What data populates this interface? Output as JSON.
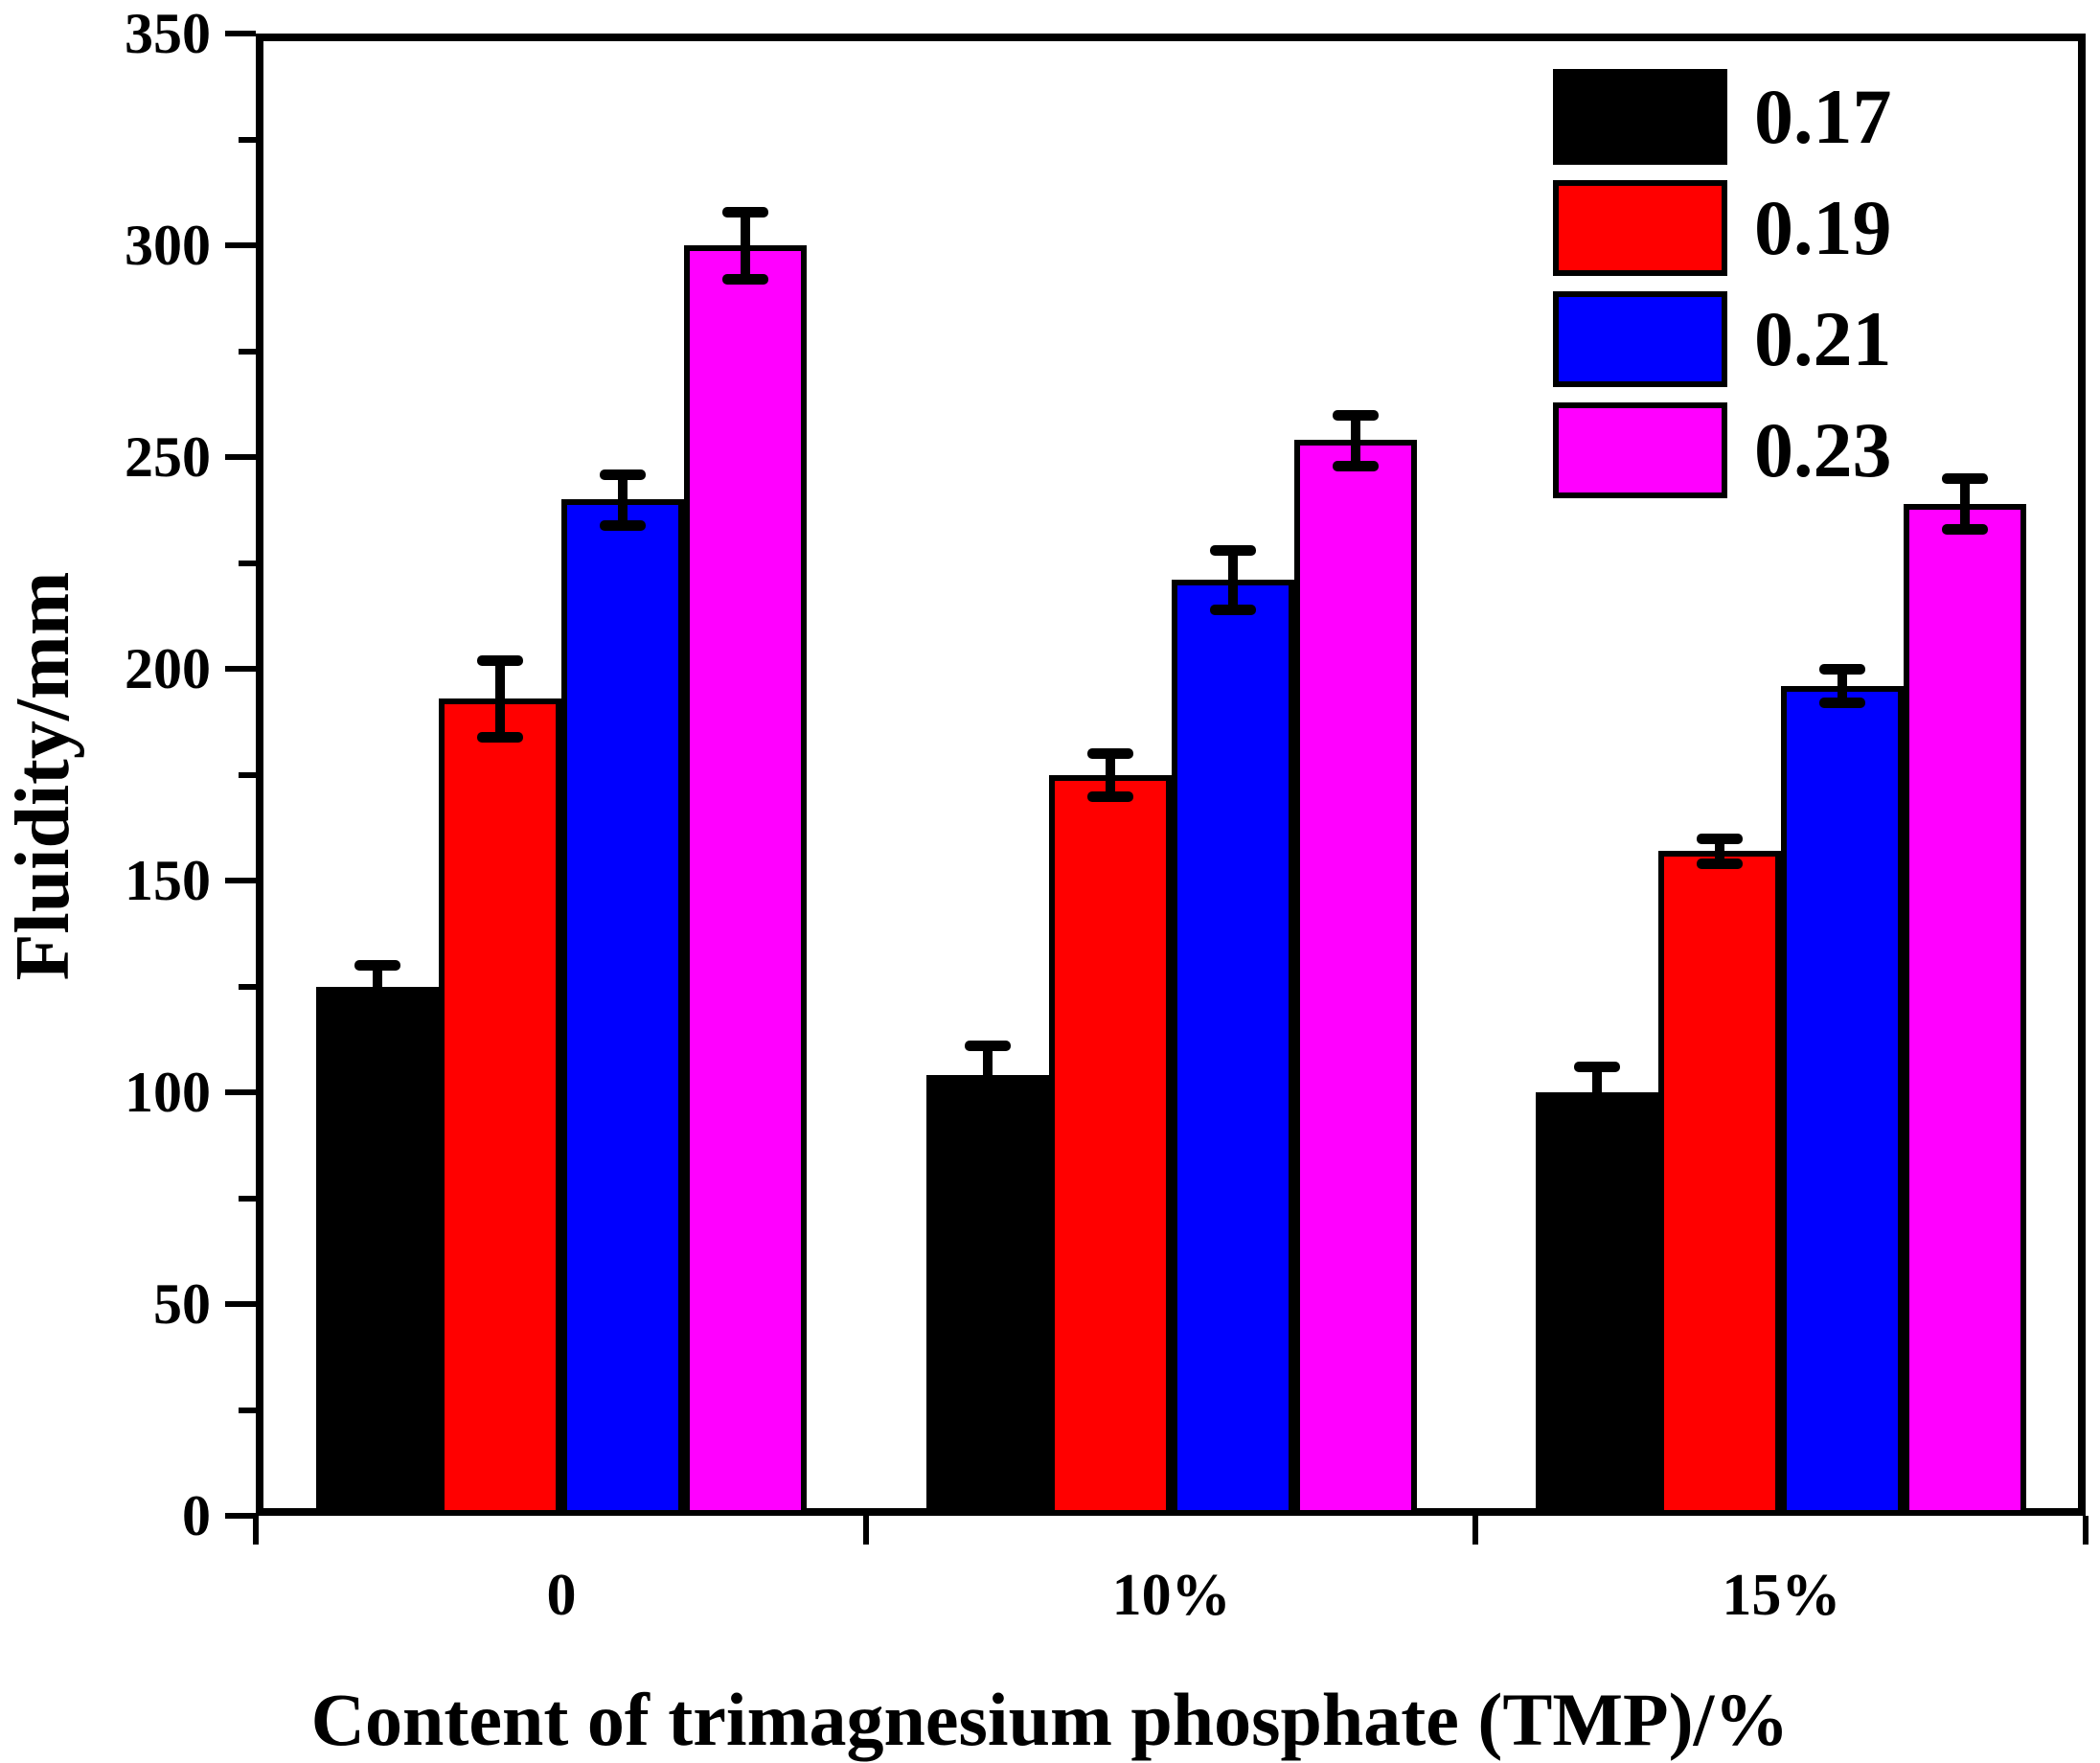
{
  "chart_data": {
    "type": "bar",
    "title": "",
    "xlabel": "Content of trimagnesium phosphate (TMP)/%",
    "ylabel": "Fluidity/mm",
    "categories": [
      "0",
      "10%",
      "15%"
    ],
    "series": [
      {
        "name": "0.17",
        "color": "#000000",
        "values": [
          125,
          104,
          100
        ],
        "errors": [
          5,
          7,
          6
        ]
      },
      {
        "name": "0.19",
        "color": "#FF0000",
        "values": [
          193,
          175,
          157
        ],
        "errors": [
          9,
          5,
          3
        ]
      },
      {
        "name": "0.21",
        "color": "#0000FF",
        "values": [
          240,
          221,
          196
        ],
        "errors": [
          6,
          7,
          4
        ]
      },
      {
        "name": "0.23",
        "color": "#FF00FF",
        "values": [
          300,
          254,
          239
        ],
        "errors": [
          8,
          6,
          6
        ]
      }
    ],
    "ylim": [
      0,
      350
    ],
    "y_major_tick": 50,
    "y_minor_tick": 25,
    "y_tick_labels": [
      "0",
      "50",
      "100",
      "150",
      "200",
      "250",
      "300",
      "350"
    ],
    "legend_position": "top-right",
    "grid": false,
    "error_bars": true
  }
}
